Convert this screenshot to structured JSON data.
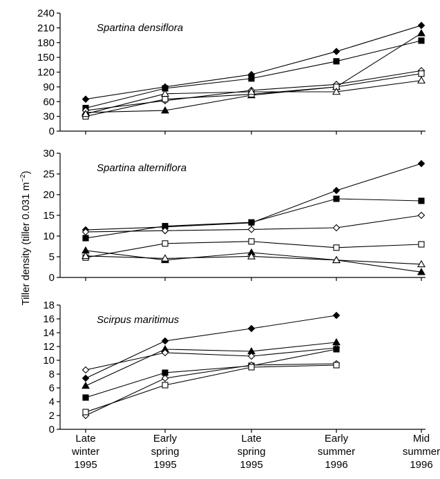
{
  "chart_data": {
    "type": "line",
    "ylabel": "Tiller density (tiller 0.031 m",
    "ylabel_sup": "−2",
    "ylabel_close": ")",
    "categories": [
      [
        "Late",
        "winter",
        "1995"
      ],
      [
        "Early",
        "spring",
        "1995"
      ],
      [
        "Late",
        "spring",
        "1995"
      ],
      [
        "Early",
        "summer",
        "1996"
      ],
      [
        "Mid",
        "summer",
        "1996"
      ]
    ],
    "panels": [
      {
        "title": "Spartina densiflora",
        "ylim": [
          0,
          240
        ],
        "yticks": [
          0,
          30,
          60,
          90,
          120,
          150,
          180,
          210,
          240
        ],
        "series": [
          {
            "marker": "filled-diamond",
            "values": [
              65,
              90,
              115,
              162,
              215
            ]
          },
          {
            "marker": "filled-square",
            "values": [
              47,
              87,
              107,
              142,
              184
            ]
          },
          {
            "marker": "filled-triangle",
            "values": [
              38,
              42,
              73,
              90,
              199
            ]
          },
          {
            "marker": "open-diamond",
            "values": [
              42,
              62,
              83,
              95,
              123
            ]
          },
          {
            "marker": "open-square",
            "values": [
              30,
              65,
              75,
              90,
              117
            ]
          },
          {
            "marker": "open-triangle",
            "values": [
              35,
              76,
              80,
              80,
              103
            ]
          }
        ]
      },
      {
        "title": "Spartina alterniflora",
        "ylim": [
          0,
          30
        ],
        "yticks": [
          0,
          5,
          10,
          15,
          20,
          25,
          30
        ],
        "series": [
          {
            "marker": "filled-diamond",
            "values": [
              11.5,
              12.2,
              13.2,
              21,
              27.5
            ]
          },
          {
            "marker": "filled-square",
            "values": [
              9.5,
              12.4,
              13.3,
              19,
              18.5
            ]
          },
          {
            "marker": "open-diamond",
            "values": [
              11,
              11.3,
              11.6,
              12,
              15
            ]
          },
          {
            "marker": "open-square",
            "values": [
              4.8,
              8.2,
              8.7,
              7.2,
              8
            ]
          },
          {
            "marker": "filled-triangle",
            "values": [
              6.5,
              4.2,
              6,
              4.2,
              1.3
            ]
          },
          {
            "marker": "open-triangle",
            "values": [
              5.2,
              4.6,
              5.1,
              4.2,
              3.2
            ]
          }
        ]
      },
      {
        "title": "Scirpus maritimus",
        "ylim": [
          0,
          18
        ],
        "yticks": [
          0,
          2,
          4,
          6,
          8,
          10,
          12,
          14,
          16,
          18
        ],
        "series": [
          {
            "marker": "filled-diamond",
            "values": [
              7.4,
              12.8,
              14.6,
              16.5
            ]
          },
          {
            "marker": "filled-triangle",
            "values": [
              6.3,
              11.6,
              11.3,
              12.6
            ]
          },
          {
            "marker": "open-diamond",
            "values": [
              8.6,
              11.1,
              10.6,
              11.8
            ]
          },
          {
            "marker": "filled-square",
            "values": [
              4.6,
              8.2,
              9.2,
              11.6
            ]
          },
          {
            "marker": "open-diamond",
            "values": [
              2,
              7.4,
              9.3,
              9.5
            ]
          },
          {
            "marker": "open-square",
            "values": [
              2.5,
              6.4,
              9,
              9.3
            ]
          }
        ]
      }
    ]
  }
}
